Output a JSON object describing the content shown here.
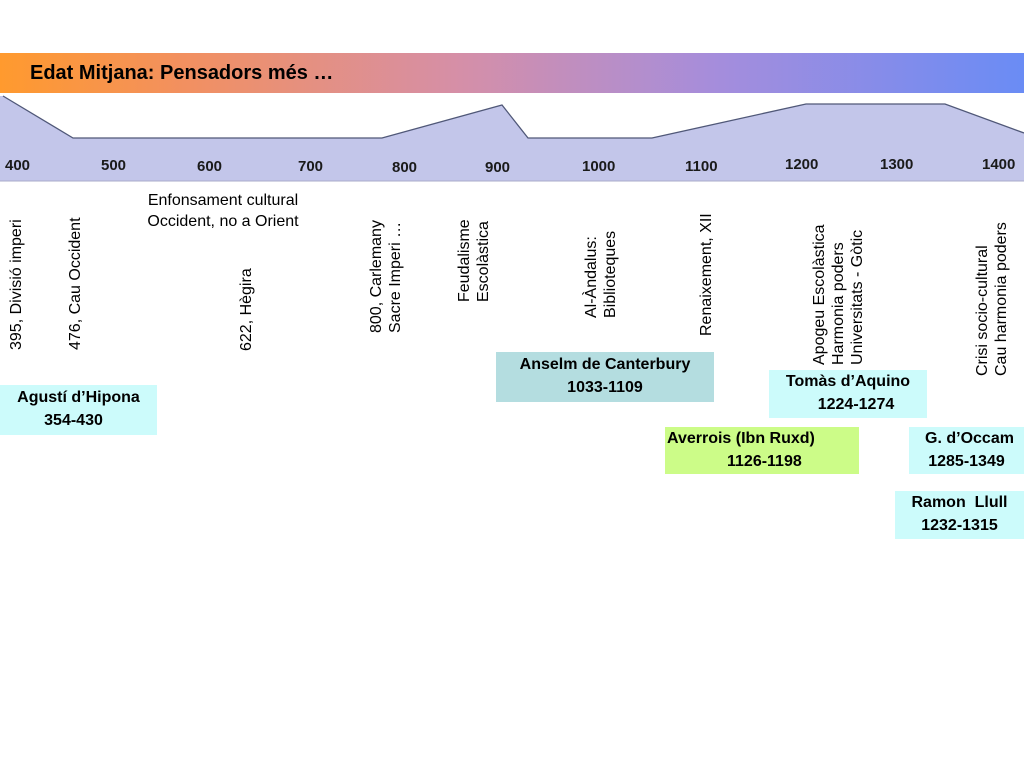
{
  "title": "Edat Mitjana: Pensadors més …",
  "timeline": {
    "fill_color": "#c3c6ea",
    "years": [
      "400",
      "500",
      "600",
      "700",
      "800",
      "900",
      "1000",
      "1100",
      "1200",
      "1300",
      "1400"
    ]
  },
  "events": {
    "division_empire": "395, Divisió imperi",
    "fall_west": "476, Cau Occident",
    "hegira": "622, Hègira",
    "cultural_collapse": [
      "Enfonsament cultural",
      "Occident, no a Orient"
    ],
    "charlemagne": [
      "800, Carlemany",
      "Sacre Imperi …"
    ],
    "feudalism": [
      "Feudalisme",
      "Escolàstica"
    ],
    "al_andalus": [
      "Al-Àndalus:",
      "Biblioteques"
    ],
    "renaissance_xii": "Renaixement, XII",
    "scholastic_peak": [
      "Apogeu Escolàstica",
      "Harmonia poders",
      "Universitats - Gòtic"
    ],
    "crisis": [
      "Crisi socio-cultural",
      "Cau harmonia poders"
    ]
  },
  "thinkers": {
    "augustine": {
      "name": "Agustí d’Hipona",
      "dates": "354-430",
      "color": "#ccfbfb"
    },
    "anselm": {
      "name": "Anselm de Canterbury",
      "dates": "1033-1109",
      "color": "#b4dde0"
    },
    "aquinas": {
      "name": "Tomàs d’Aquino",
      "dates": "1224-1274",
      "color": "#ccfbfb"
    },
    "averroes": {
      "name": "Averrois (Ibn Ruxd)",
      "dates": "1126-1198",
      "color": "#ccfc88"
    },
    "ockham": {
      "name": "G. d’Occam",
      "dates": "1285-1349",
      "color": "#ccfbfb"
    },
    "llull": {
      "name": "Ramon  Llull",
      "dates": "1232-1315",
      "color": "#ccfbfb"
    }
  }
}
